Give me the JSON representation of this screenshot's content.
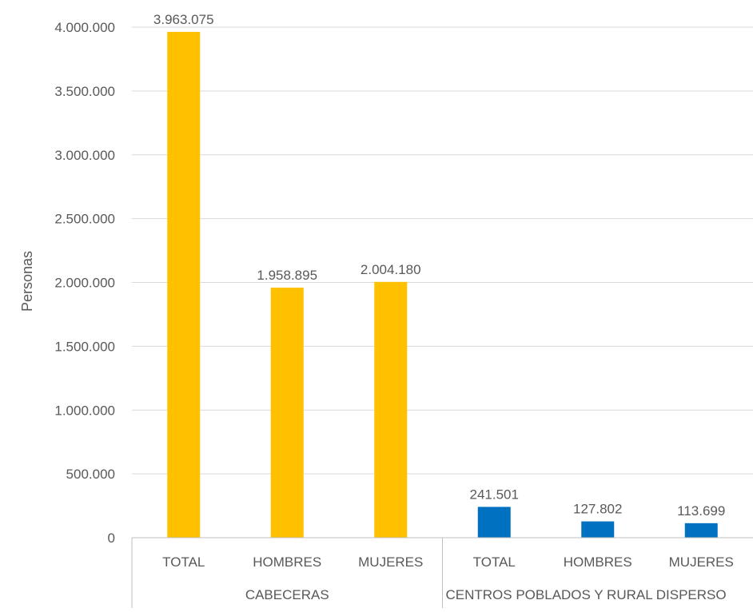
{
  "chart_data": {
    "type": "bar",
    "title": "",
    "xlabel": "",
    "ylabel": "Personas",
    "ylim": [
      0,
      4000000
    ],
    "ytick_step": 500000,
    "yticks": [
      "0",
      "500.000",
      "1.000.000",
      "1.500.000",
      "2.000.000",
      "2.500.000",
      "3.000.000",
      "3.500.000",
      "4.000.000"
    ],
    "grid": true,
    "groups": [
      {
        "name": "CABECERAS",
        "color": "#FFC000",
        "categories": [
          "TOTAL",
          "HOMBRES",
          "MUJERES"
        ],
        "values": [
          3963075,
          1958895,
          2004180
        ],
        "labels": [
          "3.963.075",
          "1.958.895",
          "2.004.180"
        ]
      },
      {
        "name": "CENTROS POBLADOS Y RURAL DISPERSO",
        "color": "#0070C0",
        "categories": [
          "TOTAL",
          "HOMBRES",
          "MUJERES"
        ],
        "values": [
          241501,
          127802,
          113699
        ],
        "labels": [
          "241.501",
          "127.802",
          "113.699"
        ]
      }
    ]
  }
}
